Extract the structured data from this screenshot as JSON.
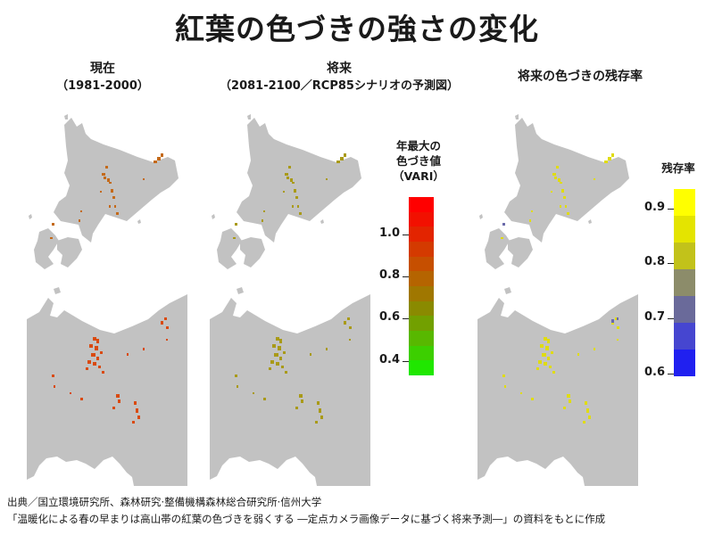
{
  "title": "紅葉の色づきの強さの変化",
  "columns": [
    {
      "heading": "現在",
      "subheading": "（1981-2000）"
    },
    {
      "heading": "将来",
      "subheading": "（2081-2100／RCP85シナリオの予測図）"
    },
    {
      "heading": "将来の色づきの残存率",
      "subheading": ""
    }
  ],
  "legend_vari": {
    "title_lines": [
      "年最大の",
      "色づき値",
      "（VARI）"
    ],
    "ticks": [
      "1.0",
      "0.8",
      "0.6",
      "0.4"
    ],
    "tick_values": [
      1.0,
      0.8,
      0.6,
      0.4
    ],
    "range": [
      0.33,
      1.18
    ],
    "colors": [
      "#ff0000",
      "#f21000",
      "#e32400",
      "#d43a00",
      "#c64f00",
      "#b56400",
      "#a07700",
      "#8a8a00",
      "#72a000",
      "#58b800",
      "#3ccf00",
      "#20e700"
    ]
  },
  "legend_residual": {
    "title": "残存率",
    "ticks": [
      "0.9",
      "0.8",
      "0.7",
      "0.6"
    ],
    "tick_values": [
      0.9,
      0.8,
      0.7,
      0.6
    ],
    "range": [
      0.595,
      0.935
    ],
    "colors": [
      "#ffff00",
      "#e4e400",
      "#c2c21a",
      "#8c8c6a",
      "#6a6a9a",
      "#4646d0",
      "#2020f0"
    ]
  },
  "colors": {
    "land": "#c2c2c2",
    "present_high": "#d94a10",
    "present_mid": "#c46a1a",
    "future": "#a99a18",
    "residual": "#e0dc10",
    "residual_low": "#6a6aaa"
  },
  "source": {
    "line1": "出典／国立環境研究所、森林研究·整備機構森林総合研究所·信州大学",
    "line2": "「温暖化による春の早まりは高山帯の紅葉の色づきを弱くする ―定点カメラ画像データに基づく将来予測―」の資料をもとに作成"
  }
}
